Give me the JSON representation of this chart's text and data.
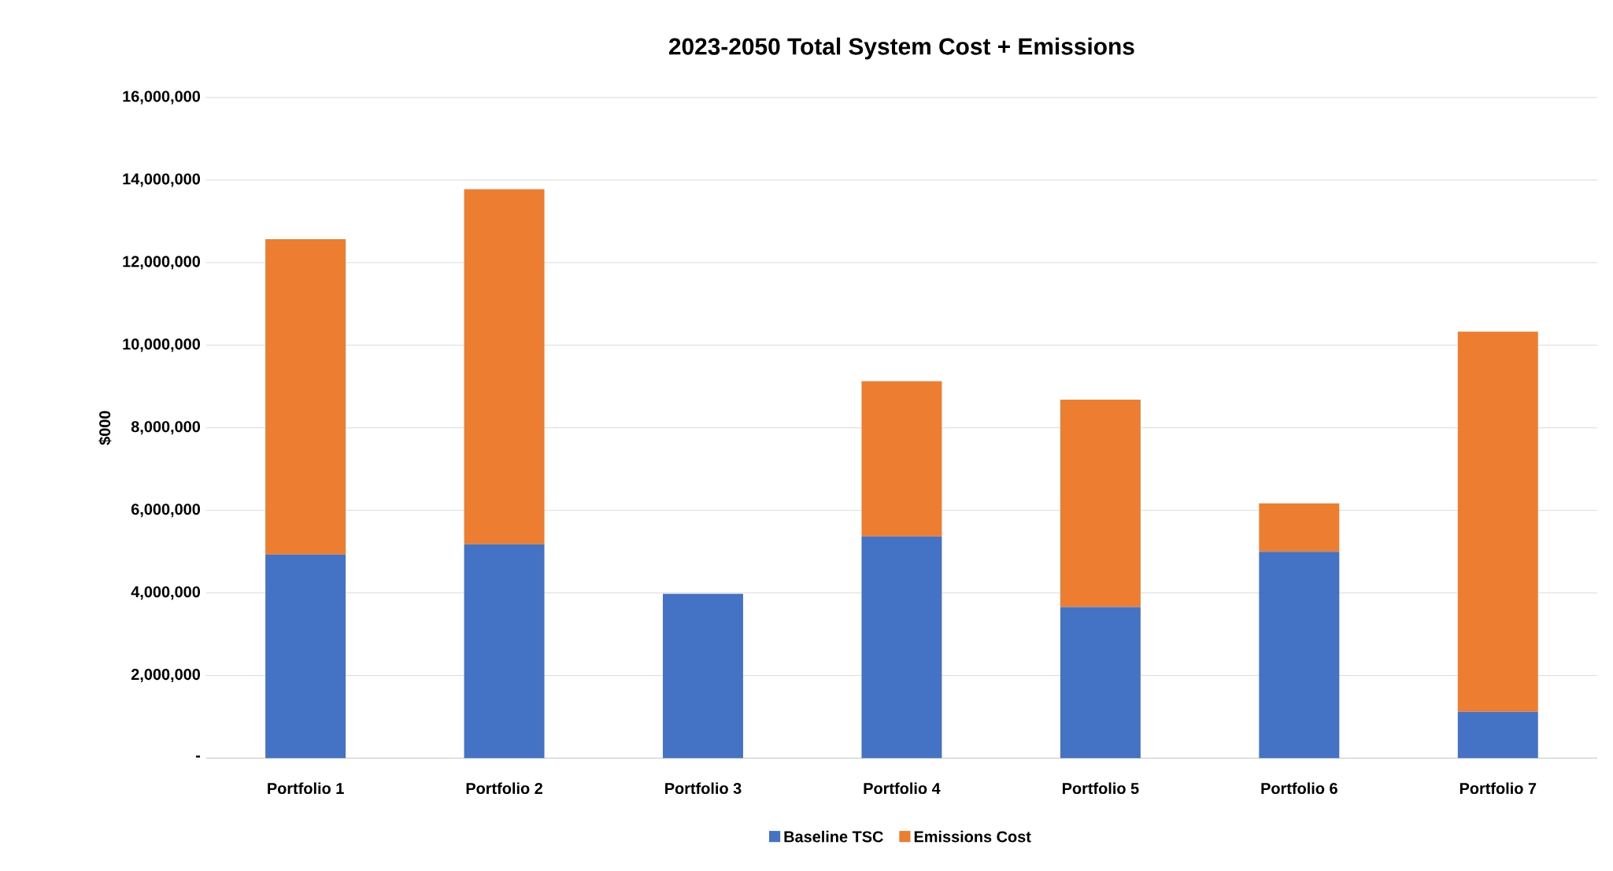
{
  "chart_data": {
    "type": "bar",
    "stacked": true,
    "title": "2023-2050 Total System Cost + Emissions",
    "ylabel": "$000",
    "categories": [
      "Portfolio 1",
      "Portfolio 2",
      "Portfolio 3",
      "Portfolio 4",
      "Portfolio 5",
      "Portfolio 6",
      "Portfolio 7"
    ],
    "series": [
      {
        "name": "Baseline TSC",
        "color": "#4472c4",
        "values": [
          4930000,
          5180000,
          3980000,
          5370000,
          3660000,
          5000000,
          1120000
        ]
      },
      {
        "name": "Emissions Cost",
        "color": "#ed7d31",
        "values": [
          7640000,
          8600000,
          0,
          3760000,
          5020000,
          1170000,
          9210000
        ]
      }
    ],
    "ylim": [
      0,
      16000000
    ],
    "yticks": [
      {
        "value": 0,
        "label": "-"
      },
      {
        "value": 2000000,
        "label": "2,000,000"
      },
      {
        "value": 4000000,
        "label": "4,000,000"
      },
      {
        "value": 6000000,
        "label": "6,000,000"
      },
      {
        "value": 8000000,
        "label": "8,000,000"
      },
      {
        "value": 10000000,
        "label": "10,000,000"
      },
      {
        "value": 12000000,
        "label": "12,000,000"
      },
      {
        "value": 14000000,
        "label": "14,000,000"
      },
      {
        "value": 16000000,
        "label": "16,000,000"
      }
    ],
    "grid": "y",
    "legend": "bottom"
  }
}
